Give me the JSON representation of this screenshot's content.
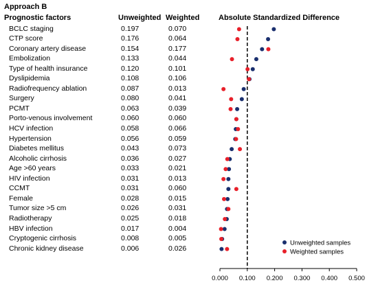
{
  "headings": {
    "approach": "Approach B",
    "factors": "Prognostic factors",
    "unweighted": "Unweighted",
    "weighted": "Weighted",
    "chart_title": "Absolute Standardized Difference"
  },
  "rows": [
    {
      "label": "BCLC staging",
      "unweighted": "0.197",
      "weighted": "0.070"
    },
    {
      "label": "CTP score",
      "unweighted": "0.176",
      "weighted": "0.064"
    },
    {
      "label": "Coronary artery disease",
      "unweighted": "0.154",
      "weighted": "0.177"
    },
    {
      "label": "Embolization",
      "unweighted": "0.133",
      "weighted": "0.044"
    },
    {
      "label": "Type of health insurance",
      "unweighted": "0.120",
      "weighted": "0.101"
    },
    {
      "label": "Dyslipidemia",
      "unweighted": "0.108",
      "weighted": "0.106"
    },
    {
      "label": "Radiofrequency ablation",
      "unweighted": "0.087",
      "weighted": "0.013"
    },
    {
      "label": "Surgery",
      "unweighted": "0.080",
      "weighted": "0.041"
    },
    {
      "label": "PCMT",
      "unweighted": "0.063",
      "weighted": "0.039"
    },
    {
      "label": "Porto-venous involvement",
      "unweighted": "0.060",
      "weighted": "0.060"
    },
    {
      "label": "HCV infection",
      "unweighted": "0.058",
      "weighted": "0.066"
    },
    {
      "label": "Hypertension",
      "unweighted": "0.056",
      "weighted": "0.059"
    },
    {
      "label": "Diabetes mellitus",
      "unweighted": "0.043",
      "weighted": "0.073"
    },
    {
      "label": "Alcoholic cirrhosis",
      "unweighted": "0.036",
      "weighted": "0.027"
    },
    {
      "label": "Age >60 years",
      "unweighted": "0.033",
      "weighted": "0.021"
    },
    {
      "label": "HIV infection",
      "unweighted": "0.031",
      "weighted": "0.013"
    },
    {
      "label": "CCMT",
      "unweighted": "0.031",
      "weighted": "0.060"
    },
    {
      "label": "Female",
      "unweighted": "0.028",
      "weighted": "0.015"
    },
    {
      "label": "Tumor size >5 cm",
      "unweighted": "0.026",
      "weighted": "0.031"
    },
    {
      "label": "Radiotherapy",
      "unweighted": "0.025",
      "weighted": "0.018"
    },
    {
      "label": "HBV infection",
      "unweighted": "0.017",
      "weighted": "0.004"
    },
    {
      "label": "Cryptogenic cirrhosis",
      "unweighted": "0.008",
      "weighted": "0.005"
    },
    {
      "label": "Chronic kidney disease",
      "unweighted": "0.006",
      "weighted": "0.026"
    }
  ],
  "chart_data": {
    "type": "scatter",
    "title": "Absolute Standardized Difference",
    "xlim": [
      0,
      0.5
    ],
    "x_ticks": [
      "0.000",
      "0.100",
      "0.200",
      "0.300",
      "0.400",
      "0.500"
    ],
    "reference_line_x": 0.1,
    "reference_line_style": "dashed",
    "grid": false,
    "legend_position": "bottom-right",
    "categories": [
      "BCLC staging",
      "CTP score",
      "Coronary artery disease",
      "Embolization",
      "Type of health insurance",
      "Dyslipidemia",
      "Radiofrequency ablation",
      "Surgery",
      "PCMT",
      "Porto-venous involvement",
      "HCV infection",
      "Hypertension",
      "Diabetes mellitus",
      "Alcoholic cirrhosis",
      "Age >60 years",
      "HIV infection",
      "CCMT",
      "Female",
      "Tumor size >5 cm",
      "Radiotherapy",
      "HBV infection",
      "Cryptogenic cirrhosis",
      "Chronic kidney disease"
    ],
    "series": [
      {
        "name": "Unweighted samples",
        "color": "#1a2f6e",
        "values": [
          0.197,
          0.176,
          0.154,
          0.133,
          0.12,
          0.108,
          0.087,
          0.08,
          0.063,
          0.06,
          0.058,
          0.056,
          0.043,
          0.036,
          0.033,
          0.031,
          0.031,
          0.028,
          0.026,
          0.025,
          0.017,
          0.008,
          0.006
        ]
      },
      {
        "name": "Weighted samples",
        "color": "#e8202a",
        "values": [
          0.07,
          0.064,
          0.177,
          0.044,
          0.101,
          0.106,
          0.013,
          0.041,
          0.039,
          0.06,
          0.066,
          0.059,
          0.073,
          0.027,
          0.021,
          0.013,
          0.06,
          0.015,
          0.031,
          0.018,
          0.004,
          0.005,
          0.026
        ]
      }
    ]
  }
}
